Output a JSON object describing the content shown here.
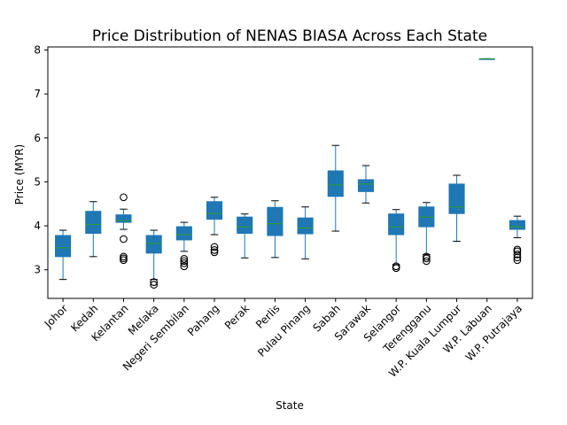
{
  "chart_data": {
    "type": "box",
    "title": "Price Distribution of NENAS BIASA Across Each State",
    "xlabel": "State",
    "ylabel": "Price (MYR)",
    "ylim": [
      2.35,
      8.07
    ],
    "yticks": [
      3,
      4,
      5,
      6,
      7,
      8
    ],
    "grid": false,
    "legend": "none",
    "colors": {
      "box_fill": "#1f77b4",
      "median": "#2ca02c",
      "whisker": "#1f77b4",
      "flier": "#000000"
    },
    "categories": [
      "Johor",
      "Kedah",
      "Kelantan",
      "Melaka",
      "Negeri Sembilan",
      "Pahang",
      "Perak",
      "Perlis",
      "Pulau Pinang",
      "Sabah",
      "Sarawak",
      "Selangor",
      "Terengganu",
      "W.P. Kuala Lumpur",
      "W.P. Labuan",
      "W.P. Putrajaya"
    ],
    "boxes": [
      {
        "label": "Johor",
        "whislo": 2.78,
        "q1": 3.3,
        "med": 3.5,
        "q3": 3.78,
        "whishi": 3.9,
        "fliers": []
      },
      {
        "label": "Kedah",
        "whislo": 3.3,
        "q1": 3.83,
        "med": 4.03,
        "q3": 4.33,
        "whishi": 4.55,
        "fliers": []
      },
      {
        "label": "Kelantan",
        "whislo": 3.92,
        "q1": 4.08,
        "med": 4.12,
        "q3": 4.25,
        "whishi": 4.38,
        "fliers": [
          4.65,
          3.7,
          3.3,
          3.26,
          3.22
        ]
      },
      {
        "label": "Melaka",
        "whislo": 2.78,
        "q1": 3.38,
        "med": 3.6,
        "q3": 3.78,
        "whishi": 3.9,
        "fliers": [
          2.72,
          2.66
        ]
      },
      {
        "label": "Negeri Sembilan",
        "whislo": 3.42,
        "q1": 3.68,
        "med": 3.8,
        "q3": 3.98,
        "whishi": 4.08,
        "fliers": [
          3.25,
          3.2,
          3.15,
          3.08
        ]
      },
      {
        "label": "Pahang",
        "whislo": 3.8,
        "q1": 4.15,
        "med": 4.28,
        "q3": 4.55,
        "whishi": 4.65,
        "fliers": [
          3.52,
          3.45,
          3.4
        ]
      },
      {
        "label": "Perak",
        "whislo": 3.27,
        "q1": 3.83,
        "med": 3.98,
        "q3": 4.2,
        "whishi": 4.27,
        "fliers": []
      },
      {
        "label": "Perlis",
        "whislo": 3.28,
        "q1": 3.78,
        "med": 4.05,
        "q3": 4.42,
        "whishi": 4.57,
        "fliers": []
      },
      {
        "label": "Pulau Pinang",
        "whislo": 3.25,
        "q1": 3.82,
        "med": 3.95,
        "q3": 4.18,
        "whishi": 4.43,
        "fliers": []
      },
      {
        "label": "Sabah",
        "whislo": 3.88,
        "q1": 4.67,
        "med": 4.93,
        "q3": 5.25,
        "whishi": 5.83,
        "fliers": []
      },
      {
        "label": "Sarawak",
        "whislo": 4.52,
        "q1": 4.78,
        "med": 4.95,
        "q3": 5.05,
        "whishi": 5.37,
        "fliers": []
      },
      {
        "label": "Selangor",
        "whislo": 3.12,
        "q1": 3.8,
        "med": 3.98,
        "q3": 4.27,
        "whishi": 4.37,
        "fliers": [
          3.08,
          3.04
        ]
      },
      {
        "label": "Terengganu",
        "whislo": 3.35,
        "q1": 3.98,
        "med": 4.2,
        "q3": 4.43,
        "whishi": 4.53,
        "fliers": [
          3.3,
          3.26,
          3.2
        ]
      },
      {
        "label": "W.P. Kuala Lumpur",
        "whislo": 3.65,
        "q1": 4.28,
        "med": 4.43,
        "q3": 4.95,
        "whishi": 5.15,
        "fliers": []
      },
      {
        "label": "W.P. Labuan",
        "whislo": 7.8,
        "q1": 7.8,
        "med": 7.8,
        "q3": 7.8,
        "whishi": 7.8,
        "fliers": []
      },
      {
        "label": "W.P. Putrajaya",
        "whislo": 3.73,
        "q1": 3.92,
        "med": 3.98,
        "q3": 4.12,
        "whishi": 4.22,
        "fliers": [
          3.46,
          3.42,
          3.35,
          3.28,
          3.22
        ]
      }
    ]
  }
}
